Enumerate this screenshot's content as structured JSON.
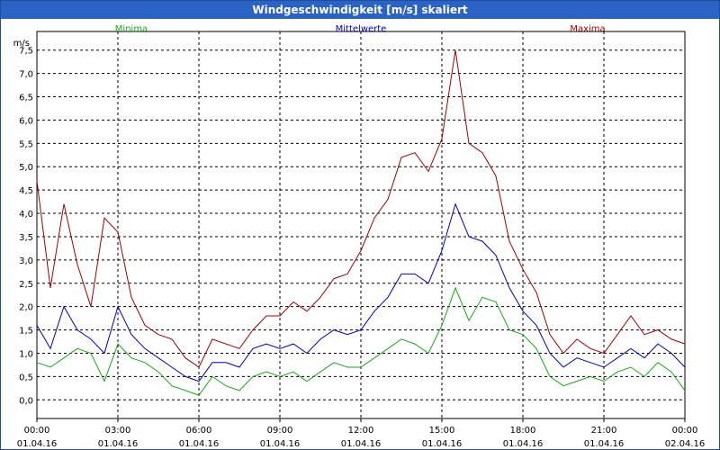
{
  "window": {
    "title": "Windgeschwindigkeit [m/s] skaliert"
  },
  "colors": {
    "minima": "#1aa81a",
    "mittel": "#0000bb",
    "maxima": "#a00000",
    "grid": "#000000",
    "titlebar": "#2a63c4"
  },
  "chart_data": {
    "type": "line",
    "title": "Windgeschwindigkeit [m/s] skaliert",
    "ylabel": "m/s",
    "xlabel": "",
    "xlim": [
      0,
      24
    ],
    "ylim": [
      -0.4,
      7.9
    ],
    "yticks": [
      0,
      0.5,
      1,
      1.5,
      2,
      2.5,
      3,
      3.5,
      4,
      4.5,
      5,
      5.5,
      6,
      6.5,
      7,
      7.5
    ],
    "ytick_labels": [
      "0,0",
      "0,5",
      "1,0",
      "1,5",
      "2,0",
      "2,5",
      "3,0",
      "3,5",
      "4,0",
      "4,5",
      "5,0",
      "5,5",
      "6,0",
      "6,5",
      "7,0",
      "7,5"
    ],
    "xticks": [
      0,
      3,
      6,
      9,
      12,
      15,
      18,
      21,
      24
    ],
    "xtick_time_labels": [
      "00:00",
      "03:00",
      "06:00",
      "09:00",
      "12:00",
      "15:00",
      "18:00",
      "21:00",
      "00:00"
    ],
    "xtick_date_labels": [
      "01.04.16",
      "01.04.16",
      "01.04.16",
      "01.04.16",
      "01.04.16",
      "01.04.16",
      "01.04.16",
      "01.04.16",
      "02.04.16"
    ],
    "grid": true,
    "legend": [
      "Minima",
      "Mittelwerte",
      "Maxima"
    ],
    "series": [
      {
        "name": "Minima",
        "x": [
          0,
          0.5,
          1,
          1.5,
          2,
          2.5,
          3,
          3.5,
          4,
          4.5,
          5,
          5.5,
          6,
          6.5,
          7,
          7.5,
          8,
          8.5,
          9,
          9.5,
          10,
          10.5,
          11,
          11.5,
          12,
          12.5,
          13,
          13.5,
          14,
          14.5,
          15,
          15.5,
          16,
          16.5,
          17,
          17.5,
          18,
          18.5,
          19,
          19.5,
          20,
          20.5,
          21,
          21.5,
          22,
          22.5,
          23,
          23.5,
          24
        ],
        "values": [
          0.8,
          0.7,
          0.9,
          1.1,
          1.0,
          0.4,
          1.2,
          0.9,
          0.8,
          0.6,
          0.3,
          0.2,
          0.1,
          0.5,
          0.3,
          0.2,
          0.5,
          0.6,
          0.5,
          0.6,
          0.4,
          0.6,
          0.8,
          0.7,
          0.7,
          0.9,
          1.1,
          1.3,
          1.2,
          1.0,
          1.6,
          2.4,
          1.7,
          2.2,
          2.1,
          1.5,
          1.4,
          1.1,
          0.5,
          0.3,
          0.4,
          0.5,
          0.4,
          0.6,
          0.7,
          0.5,
          0.8,
          0.6,
          0.2
        ]
      },
      {
        "name": "Mittelwerte",
        "x": [
          0,
          0.5,
          1,
          1.5,
          2,
          2.5,
          3,
          3.5,
          4,
          4.5,
          5,
          5.5,
          6,
          6.5,
          7,
          7.5,
          8,
          8.5,
          9,
          9.5,
          10,
          10.5,
          11,
          11.5,
          12,
          12.5,
          13,
          13.5,
          14,
          14.5,
          15,
          15.5,
          16,
          16.5,
          17,
          17.5,
          18,
          18.5,
          19,
          19.5,
          20,
          20.5,
          21,
          21.5,
          22,
          22.5,
          23,
          23.5,
          24
        ],
        "values": [
          1.6,
          1.1,
          2.0,
          1.5,
          1.3,
          1.0,
          2.0,
          1.4,
          1.1,
          0.9,
          0.7,
          0.5,
          0.4,
          0.8,
          0.8,
          0.7,
          1.1,
          1.2,
          1.1,
          1.2,
          1.0,
          1.3,
          1.5,
          1.4,
          1.5,
          1.9,
          2.2,
          2.7,
          2.7,
          2.5,
          3.2,
          4.2,
          3.5,
          3.4,
          3.1,
          2.4,
          1.9,
          1.6,
          1.0,
          0.7,
          0.9,
          0.8,
          0.7,
          0.9,
          1.1,
          0.9,
          1.2,
          1.0,
          0.7
        ]
      },
      {
        "name": "Maxima",
        "x": [
          0,
          0.5,
          1,
          1.5,
          2,
          2.5,
          3,
          3.5,
          4,
          4.5,
          5,
          5.5,
          6,
          6.5,
          7,
          7.5,
          8,
          8.5,
          9,
          9.5,
          10,
          10.5,
          11,
          11.5,
          12,
          12.5,
          13,
          13.5,
          14,
          14.5,
          15,
          15.5,
          16,
          16.5,
          17,
          17.5,
          18,
          18.5,
          19,
          19.5,
          20,
          20.5,
          21,
          21.5,
          22,
          22.5,
          23,
          23.5,
          24
        ],
        "values": [
          4.7,
          2.4,
          4.2,
          2.9,
          2.0,
          3.9,
          3.6,
          2.2,
          1.6,
          1.4,
          1.3,
          0.9,
          0.7,
          1.3,
          1.2,
          1.1,
          1.5,
          1.8,
          1.8,
          2.1,
          1.9,
          2.2,
          2.6,
          2.7,
          3.2,
          3.9,
          4.3,
          5.2,
          5.3,
          4.9,
          5.6,
          7.5,
          5.5,
          5.3,
          4.8,
          3.4,
          2.8,
          2.3,
          1.4,
          1.0,
          1.3,
          1.1,
          1.0,
          1.4,
          1.8,
          1.4,
          1.5,
          1.3,
          1.2
        ]
      }
    ]
  }
}
